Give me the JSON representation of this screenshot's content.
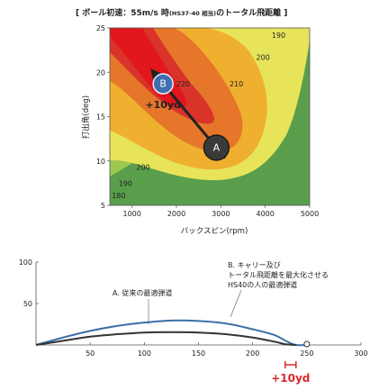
{
  "chart_data": [
    {
      "type": "contour",
      "title": {
        "open": "[ ボール初速：55m/s 時",
        "note": "(HS37-40 相当)",
        "close": "のトータル飛距離 ]"
      },
      "xlabel": "バックスピン(rpm)",
      "ylabel": "打出角(deg)",
      "xlim": [
        500,
        5000
      ],
      "ylim": [
        5,
        25
      ],
      "xticks": [
        "1000",
        "2000",
        "3000",
        "4000",
        "5000"
      ],
      "yticks": [
        "5",
        "10",
        "15",
        "20",
        "25"
      ],
      "levels": [
        180,
        190,
        200,
        210,
        220
      ],
      "contour_labels": [
        {
          "text": "190",
          "x": 4300,
          "y": 24.2
        },
        {
          "text": "200",
          "x": 3950,
          "y": 21.7
        },
        {
          "text": "210",
          "x": 3350,
          "y": 18.7
        },
        {
          "text": "220",
          "x": 2150,
          "y": 18.7
        },
        {
          "text": "200",
          "x": 1250,
          "y": 9.3
        },
        {
          "text": "190",
          "x": 850,
          "y": 7.5
        },
        {
          "text": "180",
          "x": 700,
          "y": 6.1
        }
      ],
      "points": [
        {
          "label": "A",
          "x": 2900,
          "y": 11.5
        },
        {
          "label": "B",
          "x": 1700,
          "y": 18.7
        }
      ],
      "arrow_label": "+10yd",
      "colors": {
        "c180": "#5a9e4c",
        "c190": "#9cc850",
        "c200": "#e8e45a",
        "c210": "#efb030",
        "c220": "#e5762a",
        "c230": "#d9332a",
        "c240": "#e1171d",
        "marker_a": "#3a3a3a",
        "marker_b": "#3f6fae",
        "arrow": "#222222"
      }
    },
    {
      "type": "line",
      "xlim": [
        0,
        300
      ],
      "ylim": [
        0,
        100
      ],
      "xticks": [
        "50",
        "100",
        "150",
        "200",
        "250",
        "300"
      ],
      "yticks": [
        "100",
        "50"
      ],
      "series": [
        {
          "name": "A. 従来の最適弾道",
          "x": [
            0,
            25,
            50,
            75,
            100,
            125,
            150,
            175,
            200,
            220,
            230,
            240
          ],
          "y": [
            0,
            5,
            10,
            13,
            15,
            15.5,
            15,
            13,
            9,
            4,
            1,
            0
          ]
        },
        {
          "name": "B. キャリー及び トータル飛距離を最大化させる HS40の人の最適弾道",
          "x": [
            0,
            25,
            50,
            75,
            100,
            125,
            150,
            175,
            200,
            220,
            232,
            240,
            250
          ],
          "y": [
            0,
            9,
            17,
            23,
            27,
            29.5,
            29,
            26,
            19,
            12,
            4,
            0,
            0
          ]
        }
      ],
      "annotation_a": "A. 従来の最適弾道",
      "annotation_b": [
        "B. キャリー及び",
        "トータル飛距離を最大化させる",
        "HS40の人の最適弾道"
      ],
      "gain_label": "+10yd",
      "gain_range": [
        230,
        240
      ],
      "colors": {
        "a": "#333333",
        "b": "#3a6fa8",
        "gain": "#d72a2a"
      }
    }
  ]
}
